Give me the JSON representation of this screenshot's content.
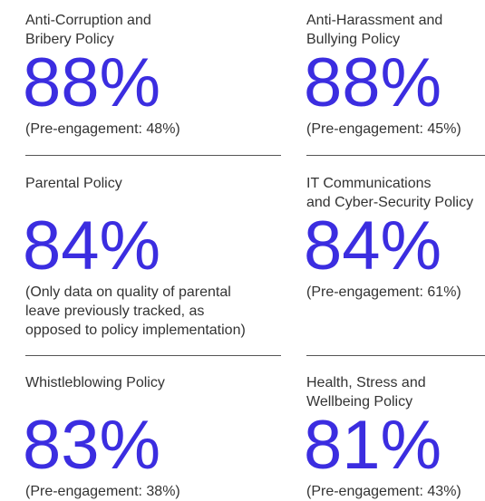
{
  "items": [
    {
      "title": [
        "Anti-Corruption and",
        "Bribery Policy"
      ],
      "value": "88%",
      "note": [
        "(Pre-engagement: 48%)"
      ]
    },
    {
      "title": [
        "Anti-Harassment and",
        "Bullying Policy"
      ],
      "value": "88%",
      "note": [
        "(Pre-engagement: 45%)"
      ]
    },
    {
      "title": [
        "Parental Policy"
      ],
      "value": "84%",
      "note": [
        "(Only data on quality of parental",
        "leave previously tracked, as",
        "opposed to policy implementation)"
      ]
    },
    {
      "title": [
        "IT Communications",
        "and Cyber-Security Policy"
      ],
      "value": "84%",
      "note": [
        "(Pre-engagement: 61%)"
      ]
    },
    {
      "title": [
        "Whistleblowing Policy"
      ],
      "value": "83%",
      "note": [
        "(Pre-engagement: 38%)"
      ]
    },
    {
      "title": [
        "Health, Stress and",
        "Wellbeing Policy"
      ],
      "value": "81%",
      "note": [
        "(Pre-engagement: 43%)"
      ]
    }
  ]
}
